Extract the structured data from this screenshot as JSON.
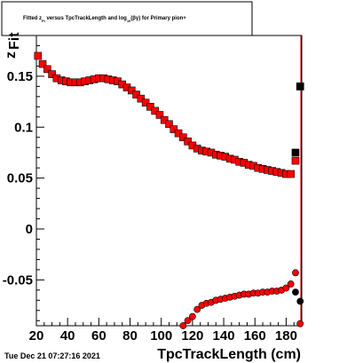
{
  "chart_data": {
    "type": "scatter",
    "title": {
      "prefix": "Fitted  z",
      "prefix_sub": "Pi",
      "middle": "  versus TpcTrackLength and log",
      "middle_sub": "10",
      "suffix": "(βγ) for Primary pion+"
    },
    "ylabel": "z",
    "ylabel_sub": "Fit",
    "xlabel": "TpcTrackLength (cm)",
    "timestamp": "Tue Dec 21 07:27:16 2021",
    "xlim": [
      20,
      190
    ],
    "ylim": [
      -0.095,
      0.19
    ],
    "x_ticks": [
      20,
      40,
      60,
      80,
      100,
      120,
      140,
      160,
      180
    ],
    "x_tick_labels": [
      "20",
      "40",
      "60",
      "80",
      "100",
      "120",
      "140",
      "160",
      "180"
    ],
    "y_ticks": [
      -0.05,
      0,
      0.05,
      0.1,
      0.15
    ],
    "y_tick_labels": [
      "-0.05",
      "0",
      "0.05",
      "0.1",
      "0.15"
    ],
    "reference_line_x": 190,
    "series": [
      {
        "marker": "square",
        "color": "#ff0000",
        "outline": "#000000",
        "points": [
          [
            21,
            0.17
          ],
          [
            24,
            0.162
          ],
          [
            27,
            0.157
          ],
          [
            30,
            0.152
          ],
          [
            33,
            0.148
          ],
          [
            36,
            0.146
          ],
          [
            39,
            0.145
          ],
          [
            42,
            0.144
          ],
          [
            45,
            0.144
          ],
          [
            48,
            0.144
          ],
          [
            51,
            0.145
          ],
          [
            54,
            0.146
          ],
          [
            57,
            0.147
          ],
          [
            60,
            0.148
          ],
          [
            63,
            0.148
          ],
          [
            66,
            0.147
          ],
          [
            69,
            0.146
          ],
          [
            72,
            0.145
          ],
          [
            75,
            0.142
          ],
          [
            78,
            0.139
          ],
          [
            81,
            0.136
          ],
          [
            84,
            0.132
          ],
          [
            87,
            0.128
          ],
          [
            90,
            0.124
          ],
          [
            93,
            0.12
          ],
          [
            96,
            0.116
          ],
          [
            99,
            0.112
          ],
          [
            102,
            0.107
          ],
          [
            105,
            0.103
          ],
          [
            108,
            0.098
          ],
          [
            111,
            0.094
          ],
          [
            114,
            0.09
          ],
          [
            117,
            0.086
          ],
          [
            120,
            0.082
          ],
          [
            123,
            0.079
          ],
          [
            126,
            0.077
          ],
          [
            129,
            0.076
          ],
          [
            132,
            0.075
          ],
          [
            135,
            0.073
          ],
          [
            138,
            0.072
          ],
          [
            141,
            0.071
          ],
          [
            144,
            0.069
          ],
          [
            147,
            0.068
          ],
          [
            150,
            0.066
          ],
          [
            153,
            0.065
          ],
          [
            156,
            0.063
          ],
          [
            159,
            0.062
          ],
          [
            162,
            0.06
          ],
          [
            165,
            0.059
          ],
          [
            168,
            0.058
          ],
          [
            171,
            0.057
          ],
          [
            174,
            0.056
          ],
          [
            177,
            0.055
          ],
          [
            180,
            0.054
          ],
          [
            183,
            0.054
          ],
          [
            186,
            0.067
          ],
          [
            189,
            0.14
          ]
        ]
      },
      {
        "marker": "square",
        "color": "#000000",
        "outline": "#000000",
        "points": [
          [
            186,
            0.075
          ],
          [
            189,
            0.14
          ]
        ]
      },
      {
        "marker": "circle",
        "color": "#ff0000",
        "outline": "#000000",
        "points": [
          [
            114,
            -0.095
          ],
          [
            117,
            -0.09
          ],
          [
            120,
            -0.086
          ],
          [
            123,
            -0.079
          ],
          [
            126,
            -0.075
          ],
          [
            129,
            -0.073
          ],
          [
            132,
            -0.072
          ],
          [
            135,
            -0.07
          ],
          [
            138,
            -0.069
          ],
          [
            141,
            -0.068
          ],
          [
            144,
            -0.067
          ],
          [
            147,
            -0.066
          ],
          [
            150,
            -0.065
          ],
          [
            153,
            -0.064
          ],
          [
            156,
            -0.064
          ],
          [
            159,
            -0.063
          ],
          [
            162,
            -0.063
          ],
          [
            165,
            -0.062
          ],
          [
            168,
            -0.062
          ],
          [
            171,
            -0.061
          ],
          [
            174,
            -0.061
          ],
          [
            177,
            -0.06
          ],
          [
            180,
            -0.058
          ],
          [
            183,
            -0.054
          ],
          [
            186,
            -0.043
          ],
          [
            189,
            -0.093
          ]
        ]
      },
      {
        "marker": "circle",
        "color": "#000000",
        "outline": "#000000",
        "points": [
          [
            186,
            -0.062
          ],
          [
            189,
            -0.071
          ]
        ]
      }
    ]
  }
}
